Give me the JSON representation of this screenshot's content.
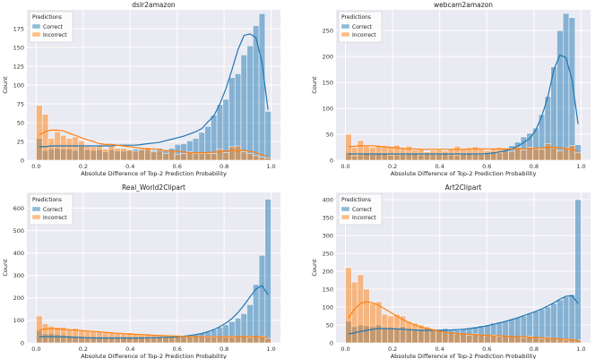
{
  "chart_data": [
    {
      "type": "histogram",
      "title": "dslr2amazon",
      "xlabel": "Absolute Difference of Top-2 Prediction Probability",
      "ylabel": "Count",
      "xlim": [
        -0.04,
        1.04
      ],
      "ylim": [
        0,
        200
      ],
      "xticks": [
        0.0,
        0.2,
        0.4,
        0.6,
        0.8,
        1.0
      ],
      "xtick_labels": [
        "0.0",
        "0.2",
        "0.4",
        "0.6",
        "0.8",
        "1.0"
      ],
      "yticks": [
        0,
        25,
        50,
        75,
        100,
        125,
        150,
        175
      ],
      "ytick_labels": [
        "0",
        "25",
        "50",
        "75",
        "100",
        "125",
        "150",
        "175"
      ],
      "legend": {
        "title": "Predictions",
        "placement": "top-left",
        "entries": [
          "Correct",
          "Incorrect"
        ]
      },
      "bins": {
        "start": 0.0,
        "width": 0.02564,
        "count": 39
      },
      "series": [
        {
          "name": "Correct",
          "color": "#1f77b4",
          "values": [
            29,
            13,
            15,
            16,
            15,
            15,
            13,
            18,
            14,
            13,
            14,
            11,
            14,
            12,
            12,
            13,
            15,
            15,
            14,
            13,
            16,
            14,
            16,
            21,
            22,
            26,
            29,
            37,
            45,
            60,
            74,
            81,
            110,
            115,
            140,
            152,
            179,
            195,
            65
          ],
          "kde": [
            18,
            18,
            19,
            19,
            19,
            19,
            19,
            19,
            19,
            19,
            19,
            19,
            19,
            20,
            20,
            20,
            20,
            21,
            22,
            23,
            24,
            26,
            28,
            30,
            32,
            35,
            38,
            42,
            51,
            59,
            75,
            95,
            120,
            147,
            166,
            168,
            163,
            130,
            67
          ]
        },
        {
          "name": "Incorrect",
          "color": "#ff7f0e",
          "values": [
            73,
            61,
            29,
            38,
            33,
            29,
            31,
            26,
            19,
            18,
            19,
            15,
            20,
            16,
            16,
            14,
            12,
            14,
            17,
            11,
            13,
            9,
            12,
            8,
            9,
            11,
            9,
            9,
            9,
            9,
            15,
            10,
            18,
            19,
            11,
            9,
            6,
            4,
            3
          ],
          "kde": [
            34,
            38,
            40,
            40,
            39,
            36,
            33,
            30,
            27,
            25,
            22,
            21,
            21,
            20,
            19,
            18,
            17,
            16,
            15,
            15,
            14,
            13,
            12,
            12,
            11,
            10,
            10,
            10,
            10,
            11,
            11,
            12,
            13,
            13,
            13,
            12,
            10,
            7,
            5
          ]
        }
      ]
    },
    {
      "type": "histogram",
      "title": "webcam2amazon",
      "xlabel": "Absolute Difference of Top-2 Prediction Probability",
      "ylabel": "Count",
      "xlim": [
        -0.04,
        1.04
      ],
      "ylim": [
        0,
        290
      ],
      "xticks": [
        0.0,
        0.2,
        0.4,
        0.6,
        0.8,
        1.0
      ],
      "xtick_labels": [
        "0.0",
        "0.2",
        "0.4",
        "0.6",
        "0.8",
        "1.0"
      ],
      "yticks": [
        0,
        50,
        100,
        150,
        200,
        250
      ],
      "ytick_labels": [
        "0",
        "50",
        "100",
        "150",
        "200",
        "250"
      ],
      "legend": {
        "title": "Predictions",
        "placement": "top-left",
        "entries": [
          "Correct",
          "Incorrect"
        ]
      },
      "bins": {
        "start": 0.0,
        "width": 0.02564,
        "count": 39
      },
      "series": [
        {
          "name": "Correct",
          "color": "#1f77b4",
          "values": [
            15,
            8,
            10,
            12,
            11,
            12,
            13,
            9,
            10,
            11,
            11,
            12,
            10,
            11,
            11,
            11,
            12,
            10,
            9,
            11,
            12,
            11,
            11,
            13,
            16,
            14,
            22,
            28,
            35,
            45,
            52,
            62,
            88,
            123,
            180,
            250,
            283,
            275,
            30
          ],
          "kde": [
            12,
            12,
            12,
            12,
            12,
            12,
            12,
            12,
            12,
            12,
            12,
            12,
            12,
            12,
            12,
            12,
            12,
            12,
            12,
            12,
            12,
            12,
            12,
            13,
            14,
            16,
            18,
            22,
            27,
            34,
            42,
            58,
            85,
            122,
            175,
            203,
            198,
            155,
            70
          ]
        },
        {
          "name": "Incorrect",
          "color": "#ff7f0e",
          "values": [
            50,
            25,
            38,
            27,
            25,
            28,
            26,
            26,
            29,
            24,
            27,
            20,
            22,
            16,
            19,
            20,
            18,
            21,
            27,
            21,
            24,
            26,
            21,
            19,
            22,
            25,
            23,
            17,
            25,
            20,
            25,
            22,
            22,
            32,
            24,
            18,
            24,
            28,
            15
          ],
          "kde": [
            26,
            27,
            28,
            28,
            28,
            27,
            26,
            25,
            24,
            23,
            22,
            22,
            21,
            21,
            21,
            21,
            21,
            21,
            21,
            21,
            22,
            22,
            22,
            22,
            22,
            22,
            22,
            22,
            22,
            22,
            23,
            23,
            24,
            25,
            25,
            24,
            23,
            21,
            18
          ]
        }
      ]
    },
    {
      "type": "histogram",
      "title": "Real_World2Clipart",
      "xlabel": "Absolute Difference of Top-2 Prediction Probability",
      "ylabel": "Count",
      "xlim": [
        -0.04,
        1.04
      ],
      "ylim": [
        0,
        670
      ],
      "xticks": [
        0.0,
        0.2,
        0.4,
        0.6,
        0.8,
        1.0
      ],
      "xtick_labels": [
        "0.0",
        "0.2",
        "0.4",
        "0.6",
        "0.8",
        "1.0"
      ],
      "yticks": [
        0,
        100,
        200,
        300,
        400,
        500,
        600
      ],
      "ytick_labels": [
        "0",
        "100",
        "200",
        "300",
        "400",
        "500",
        "600"
      ],
      "legend": {
        "title": "Predictions",
        "placement": "top-left",
        "entries": [
          "Correct",
          "Incorrect"
        ]
      },
      "bins": {
        "start": 0.0,
        "width": 0.02564,
        "count": 39
      },
      "series": [
        {
          "name": "Correct",
          "color": "#1f77b4",
          "values": [
            55,
            40,
            42,
            38,
            35,
            32,
            30,
            28,
            26,
            27,
            25,
            24,
            25,
            23,
            22,
            25,
            24,
            26,
            25,
            24,
            26,
            24,
            28,
            30,
            32,
            35,
            38,
            45,
            50,
            60,
            70,
            80,
            95,
            110,
            130,
            170,
            260,
            390,
            640
          ],
          "kde": [
            28,
            28,
            28,
            27,
            27,
            26,
            25,
            24,
            23,
            22,
            22,
            22,
            22,
            22,
            22,
            22,
            22,
            22,
            23,
            23,
            24,
            25,
            26,
            28,
            30,
            33,
            37,
            42,
            50,
            60,
            72,
            88,
            108,
            135,
            168,
            205,
            240,
            255,
            215
          ]
        },
        {
          "name": "Incorrect",
          "color": "#ff7f0e",
          "values": [
            120,
            85,
            75,
            70,
            70,
            60,
            65,
            58,
            55,
            52,
            50,
            48,
            45,
            42,
            40,
            45,
            38,
            36,
            35,
            33,
            35,
            30,
            30,
            28,
            28,
            30,
            28,
            26,
            25,
            25,
            28,
            25,
            25,
            27,
            28,
            25,
            28,
            30,
            20
          ],
          "kde": [
            58,
            62,
            63,
            62,
            61,
            59,
            57,
            55,
            53,
            51,
            49,
            47,
            45,
            43,
            41,
            40,
            38,
            37,
            36,
            34,
            33,
            32,
            31,
            30,
            29,
            28,
            28,
            27,
            27,
            27,
            27,
            27,
            28,
            28,
            28,
            28,
            28,
            27,
            24
          ]
        }
      ]
    },
    {
      "type": "histogram",
      "title": "Art2Clipart",
      "xlabel": "Absolute Difference of Top-2 Prediction Probability",
      "ylabel": "Count",
      "xlim": [
        -0.04,
        1.04
      ],
      "ylim": [
        0,
        420
      ],
      "xticks": [
        0.0,
        0.2,
        0.4,
        0.6,
        0.8,
        1.0
      ],
      "xtick_labels": [
        "0.0",
        "0.2",
        "0.4",
        "0.6",
        "0.8",
        "1.0"
      ],
      "yticks": [
        0,
        50,
        100,
        150,
        200,
        250,
        300,
        350,
        400
      ],
      "ytick_labels": [
        "0",
        "50",
        "100",
        "150",
        "200",
        "250",
        "300",
        "350",
        "400"
      ],
      "legend": {
        "title": "Predictions",
        "placement": "top-left",
        "entries": [
          "Correct",
          "Incorrect"
        ]
      },
      "bins": {
        "start": 0.0,
        "width": 0.02564,
        "count": 39
      },
      "series": [
        {
          "name": "Correct",
          "color": "#1f77b4",
          "values": [
            60,
            45,
            50,
            48,
            45,
            50,
            42,
            40,
            38,
            45,
            40,
            35,
            38,
            40,
            35,
            38,
            40,
            35,
            36,
            40,
            42,
            45,
            48,
            50,
            55,
            58,
            60,
            65,
            70,
            75,
            82,
            88,
            95,
            100,
            110,
            120,
            128,
            135,
            400
          ],
          "kde": [
            25,
            28,
            32,
            35,
            38,
            40,
            40,
            40,
            39,
            38,
            37,
            36,
            35,
            35,
            35,
            35,
            35,
            36,
            37,
            38,
            40,
            42,
            45,
            48,
            52,
            56,
            60,
            65,
            70,
            76,
            82,
            88,
            95,
            103,
            112,
            122,
            130,
            132,
            110
          ]
        },
        {
          "name": "Incorrect",
          "color": "#ff7f0e",
          "values": [
            210,
            170,
            190,
            150,
            110,
            115,
            80,
            75,
            80,
            75,
            60,
            55,
            50,
            45,
            40,
            35,
            30,
            28,
            25,
            25,
            22,
            25,
            22,
            20,
            22,
            18,
            20,
            18,
            18,
            15,
            18,
            15,
            12,
            15,
            12,
            10,
            8,
            10,
            8
          ],
          "kde": [
            70,
            95,
            110,
            115,
            112,
            105,
            95,
            85,
            75,
            65,
            57,
            50,
            44,
            40,
            36,
            33,
            30,
            28,
            26,
            25,
            24,
            23,
            22,
            21,
            20,
            20,
            19,
            18,
            18,
            17,
            16,
            15,
            14,
            13,
            12,
            11,
            10,
            9,
            7
          ]
        }
      ]
    }
  ]
}
